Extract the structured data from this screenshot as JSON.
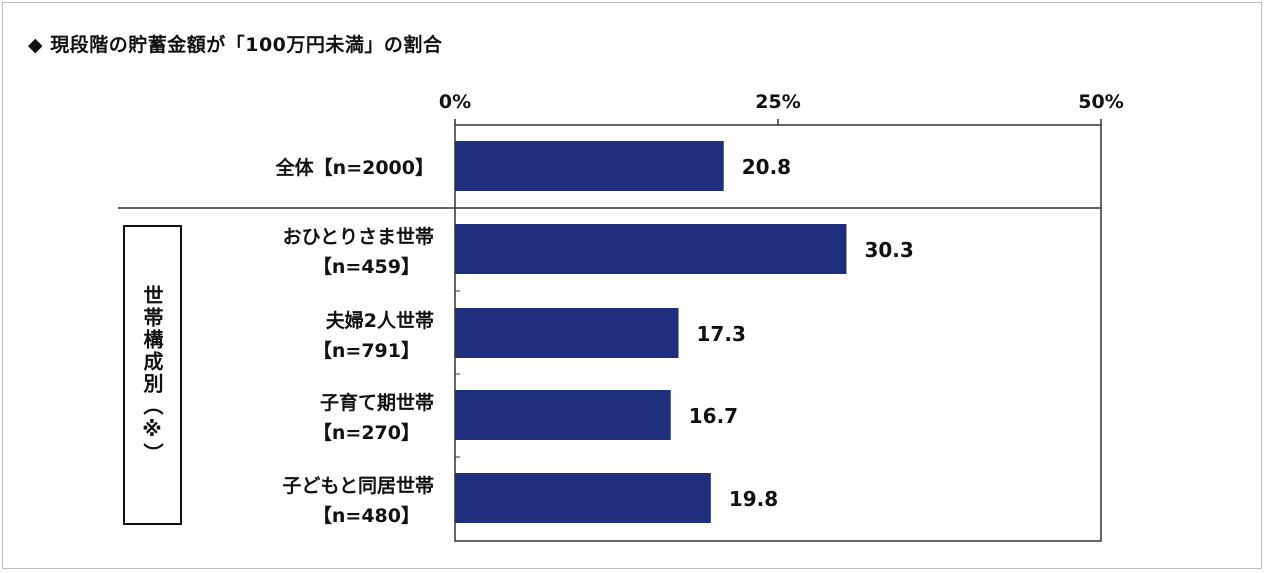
{
  "title": "◆ 現段階の貯蓄金額が「100万円未満」の割合",
  "chart_data": {
    "type": "bar",
    "orientation": "horizontal",
    "x_ticks": [
      "0%",
      "25%",
      "50%"
    ],
    "xlim": [
      0,
      50
    ],
    "bar_color": "#1f2f7e",
    "group_label": "世帯構成別（※）",
    "categories": [
      {
        "line1": "全体【n=2000】",
        "line2": ""
      },
      {
        "line1": "おひとりさま世帯",
        "line2": "【n=459】"
      },
      {
        "line1": "夫婦2人世帯",
        "line2": "【n=791】"
      },
      {
        "line1": "子育て期世帯",
        "line2": "【n=270】"
      },
      {
        "line1": "子どもと同居世帯",
        "line2": "【n=480】"
      }
    ],
    "values": [
      20.8,
      30.3,
      17.3,
      16.7,
      19.8
    ],
    "value_labels": [
      "20.8",
      "30.3",
      "17.3",
      "16.7",
      "19.8"
    ]
  }
}
